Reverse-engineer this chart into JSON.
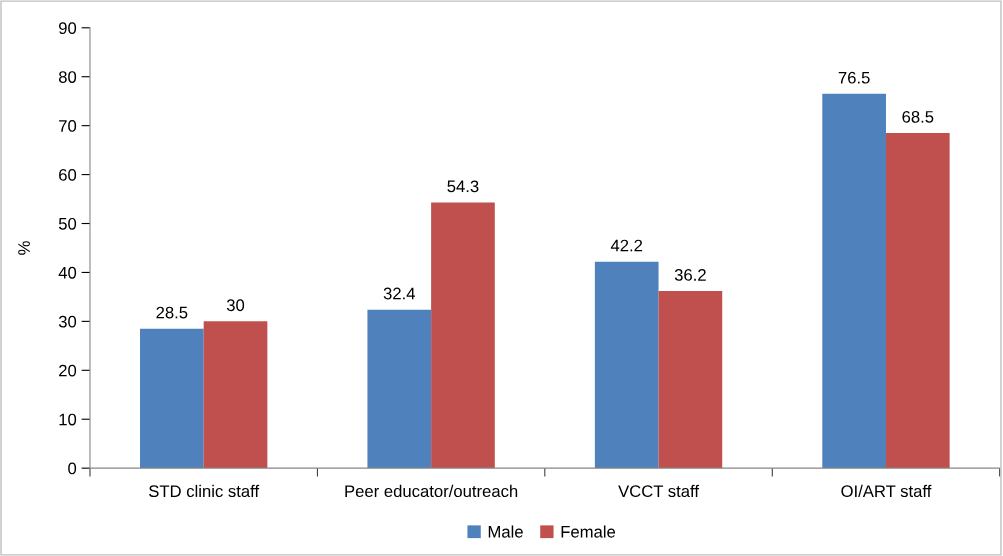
{
  "chart_data": {
    "type": "bar",
    "ylabel": "%",
    "categories": [
      "STD clinic staff",
      "Peer educator/outreach",
      "VCCT staff",
      "OI/ART staff"
    ],
    "series": [
      {
        "name": "Male",
        "color": "#4f81bd",
        "values": [
          28.5,
          32.4,
          42.2,
          76.5
        ]
      },
      {
        "name": "Female",
        "color": "#c0504d",
        "values": [
          30,
          54.3,
          36.2,
          68.5
        ]
      }
    ],
    "ylim": [
      0,
      90
    ],
    "yticks": [
      0,
      10,
      20,
      30,
      40,
      50,
      60,
      70,
      80,
      90
    ],
    "grid": false,
    "legend": "bottom",
    "data_labels": true
  }
}
